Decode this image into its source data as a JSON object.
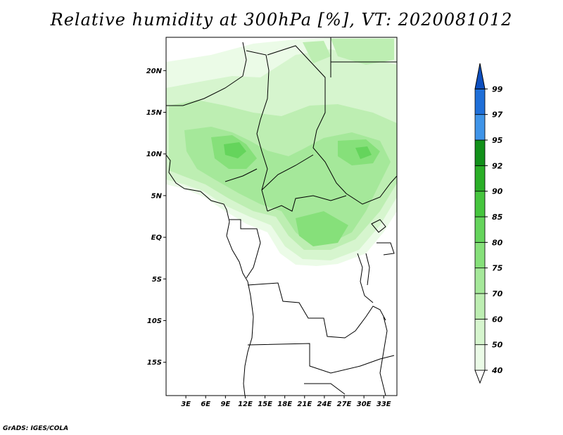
{
  "title": "Relative humidity at 300hPa [%], VT: 2020081012",
  "credit": "GrADS: IGES/COLA",
  "map": {
    "lon_range": [
      0,
      35
    ],
    "lat_range": [
      -19,
      24
    ],
    "lat_labels": [
      {
        "lat": 20,
        "text": "20N"
      },
      {
        "lat": 15,
        "text": "15N"
      },
      {
        "lat": 10,
        "text": "10N"
      },
      {
        "lat": 5,
        "text": "5N"
      },
      {
        "lat": 0,
        "text": "EQ"
      },
      {
        "lat": -5,
        "text": "5S"
      },
      {
        "lat": -10,
        "text": "10S"
      },
      {
        "lat": -15,
        "text": "15S"
      }
    ],
    "lon_labels": [
      {
        "lon": 3,
        "text": "3E"
      },
      {
        "lon": 6,
        "text": "6E"
      },
      {
        "lon": 9,
        "text": "9E"
      },
      {
        "lon": 12,
        "text": "12E"
      },
      {
        "lon": 15,
        "text": "15E"
      },
      {
        "lon": 18,
        "text": "18E"
      },
      {
        "lon": 21,
        "text": "21E"
      },
      {
        "lon": 24,
        "text": "24E"
      },
      {
        "lon": 27,
        "text": "27E"
      },
      {
        "lon": 30,
        "text": "30E"
      },
      {
        "lon": 33,
        "text": "33E"
      }
    ]
  },
  "colorbar": {
    "levels": [
      "40",
      "50",
      "60",
      "70",
      "75",
      "80",
      "85",
      "90",
      "92",
      "95",
      "97",
      "99"
    ],
    "colors": [
      "#ebfbe7",
      "#d6f5ce",
      "#bdeeb2",
      "#a5e89a",
      "#86e07a",
      "#65d45c",
      "#46c53e",
      "#2aae27",
      "#12901a",
      "#3f94e8",
      "#1f6fd8",
      "#0d4fbf"
    ]
  }
}
